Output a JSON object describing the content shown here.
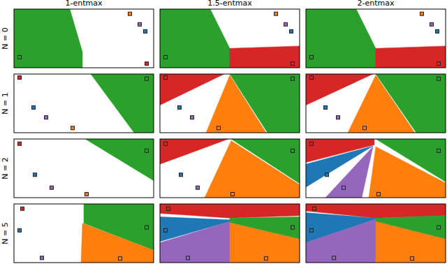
{
  "chart_data": {
    "type": "decision_regions",
    "columns": [
      "1-entmax",
      "1.5-entmax",
      "2-entmax"
    ],
    "xlim": [
      0,
      1
    ],
    "ylim": [
      0,
      1
    ],
    "tick_labels": false,
    "rows": [
      {
        "label": "N = 0",
        "points": {
          "x": [
            0.83,
            0.9,
            0.94,
            0.04,
            0.95
          ],
          "y": [
            0.92,
            0.74,
            0.62,
            0.18,
            0.07
          ],
          "colors": [
            "#ff7f0e",
            "#9467bd",
            "#1f77b4",
            "#2ca02c",
            "#d62728"
          ]
        },
        "panels": [
          {
            "regions": [
              {
                "color": "#2ca02c",
                "points": [
                  [
                    0,
                    1
                  ],
                  [
                    0.4,
                    1
                  ],
                  [
                    0.49,
                    0.27
                  ],
                  [
                    0.49,
                    0
                  ],
                  [
                    0,
                    0
                  ]
                ]
              }
            ]
          },
          {
            "regions": [
              {
                "color": "#2ca02c",
                "points": [
                  [
                    0,
                    1
                  ],
                  [
                    0.36,
                    1
                  ],
                  [
                    0.5,
                    0.33
                  ],
                  [
                    0.5,
                    0
                  ],
                  [
                    0,
                    0
                  ]
                ]
              },
              {
                "color": "#d62728",
                "points": [
                  [
                    0.5,
                    0.33
                  ],
                  [
                    1,
                    0.37
                  ],
                  [
                    1,
                    0
                  ],
                  [
                    0.5,
                    0
                  ]
                ]
              }
            ]
          },
          {
            "regions": [
              {
                "color": "#2ca02c",
                "points": [
                  [
                    0,
                    1
                  ],
                  [
                    0.36,
                    1
                  ],
                  [
                    0.5,
                    0.33
                  ],
                  [
                    0.5,
                    0
                  ],
                  [
                    0,
                    0
                  ]
                ]
              },
              {
                "color": "#d62728",
                "points": [
                  [
                    0.5,
                    0.33
                  ],
                  [
                    1,
                    0.37
                  ],
                  [
                    1,
                    0
                  ],
                  [
                    0.5,
                    0
                  ]
                ]
              }
            ]
          }
        ]
      },
      {
        "label": "N = 1",
        "points": {
          "x": [
            0.04,
            0.14,
            0.23,
            0.42,
            0.95
          ],
          "y": [
            0.94,
            0.43,
            0.26,
            0.08,
            0.92
          ],
          "colors": [
            "#d62728",
            "#1f77b4",
            "#9467bd",
            "#ff7f0e",
            "#2ca02c"
          ]
        },
        "panels": [
          {
            "regions": [
              {
                "color": "#2ca02c",
                "points": [
                  [
                    0.55,
                    1
                  ],
                  [
                    1,
                    1
                  ],
                  [
                    1,
                    0
                  ],
                  [
                    0.86,
                    0
                  ]
                ]
              }
            ]
          },
          {
            "regions": [
              {
                "color": "#d62728",
                "points": [
                  [
                    0,
                    1
                  ],
                  [
                    0.46,
                    1
                  ],
                  [
                    0,
                    0.47
                  ]
                ]
              },
              {
                "color": "#ff7f0e",
                "points": [
                  [
                    0.5,
                    0.98
                  ],
                  [
                    0.33,
                    0
                  ],
                  [
                    0.76,
                    0
                  ]
                ]
              },
              {
                "color": "#2ca02c",
                "points": [
                  [
                    0.5,
                    1
                  ],
                  [
                    1,
                    1
                  ],
                  [
                    1,
                    0
                  ],
                  [
                    0.77,
                    0
                  ]
                ]
              }
            ]
          },
          {
            "regions": [
              {
                "color": "#d62728",
                "points": [
                  [
                    0,
                    1
                  ],
                  [
                    0.48,
                    1
                  ],
                  [
                    0,
                    0.47
                  ]
                ]
              },
              {
                "color": "#ff7f0e",
                "points": [
                  [
                    0.5,
                    0.98
                  ],
                  [
                    0.3,
                    0
                  ],
                  [
                    0.78,
                    0
                  ]
                ]
              },
              {
                "color": "#2ca02c",
                "points": [
                  [
                    0.5,
                    1
                  ],
                  [
                    1,
                    1
                  ],
                  [
                    1,
                    0
                  ],
                  [
                    0.79,
                    0
                  ]
                ]
              }
            ]
          }
        ]
      },
      {
        "label": "N = 2",
        "points": {
          "x": [
            0.04,
            0.15,
            0.27,
            0.52,
            0.95
          ],
          "y": [
            0.92,
            0.39,
            0.17,
            0.06,
            0.8
          ],
          "colors": [
            "#d62728",
            "#1f77b4",
            "#9467bd",
            "#ff7f0e",
            "#2ca02c"
          ]
        },
        "panels": [
          {
            "regions": [
              {
                "color": "#2ca02c",
                "points": [
                  [
                    0.51,
                    1
                  ],
                  [
                    1,
                    1
                  ],
                  [
                    1,
                    0.29
                  ]
                ]
              }
            ]
          },
          {
            "regions": [
              {
                "color": "#d62728",
                "points": [
                  [
                    0,
                    1
                  ],
                  [
                    0.49,
                    1
                  ],
                  [
                    0,
                    0.57
                  ]
                ]
              },
              {
                "color": "#ff7f0e",
                "points": [
                  [
                    0.51,
                    0.97
                  ],
                  [
                    0.32,
                    0
                  ],
                  [
                    1,
                    0
                  ],
                  [
                    1,
                    0.22
                  ]
                ]
              },
              {
                "color": "#2ca02c",
                "points": [
                  [
                    0.51,
                    1
                  ],
                  [
                    1,
                    1
                  ],
                  [
                    1,
                    0.24
                  ]
                ]
              }
            ]
          },
          {
            "regions": [
              {
                "color": "#d62728",
                "points": [
                  [
                    0,
                    1
                  ],
                  [
                    0.49,
                    1
                  ],
                  [
                    0.49,
                    0.9
                  ],
                  [
                    0,
                    0.6
                  ]
                ]
              },
              {
                "color": "#1f77b4",
                "points": [
                  [
                    0,
                    0.57
                  ],
                  [
                    0.48,
                    0.88
                  ],
                  [
                    0,
                    0.18
                  ]
                ]
              },
              {
                "color": "#9467bd",
                "points": [
                  [
                    0.48,
                    0.87
                  ],
                  [
                    0.14,
                    0
                  ],
                  [
                    0.4,
                    0
                  ]
                ]
              },
              {
                "color": "#ff7f0e",
                "points": [
                  [
                    0.5,
                    0.87
                  ],
                  [
                    0.45,
                    0
                  ],
                  [
                    1,
                    0
                  ],
                  [
                    1,
                    0.25
                  ]
                ]
              },
              {
                "color": "#2ca02c",
                "points": [
                  [
                    0.5,
                    1
                  ],
                  [
                    1,
                    1
                  ],
                  [
                    1,
                    0.27
                  ]
                ]
              }
            ]
          }
        ]
      },
      {
        "label": "N = 5",
        "points": {
          "x": [
            0.06,
            0.04,
            0.2,
            0.76,
            0.95
          ],
          "y": [
            0.92,
            0.55,
            0.08,
            0.07,
            0.6
          ],
          "colors": [
            "#d62728",
            "#1f77b4",
            "#9467bd",
            "#ff7f0e",
            "#2ca02c"
          ]
        },
        "panels": [
          {
            "regions": [
              {
                "color": "#2ca02c",
                "points": [
                  [
                    0.5,
                    1
                  ],
                  [
                    1,
                    1
                  ],
                  [
                    1,
                    0.21
                  ],
                  [
                    0.5,
                    0.67
                  ]
                ]
              },
              {
                "color": "#ff7f0e",
                "points": [
                  [
                    0.49,
                    0.67
                  ],
                  [
                    1,
                    0.21
                  ],
                  [
                    1,
                    0
                  ],
                  [
                    0.48,
                    0
                  ]
                ]
              }
            ]
          },
          {
            "regions": [
              {
                "color": "#d62728",
                "points": [
                  [
                    0,
                    1
                  ],
                  [
                    1,
                    1
                  ],
                  [
                    1,
                    0.8
                  ],
                  [
                    0.5,
                    0.76
                  ],
                  [
                    0,
                    0.84
                  ]
                ]
              },
              {
                "color": "#1f77b4",
                "points": [
                  [
                    0,
                    0.78
                  ],
                  [
                    0.5,
                    0.73
                  ],
                  [
                    0.5,
                    0.7
                  ],
                  [
                    0,
                    0.36
                  ]
                ]
              },
              {
                "color": "#9467bd",
                "points": [
                  [
                    0,
                    0.34
                  ],
                  [
                    0.5,
                    0.7
                  ],
                  [
                    0.5,
                    0
                  ],
                  [
                    0,
                    0
                  ]
                ]
              },
              {
                "color": "#2ca02c",
                "points": [
                  [
                    0.5,
                    0.76
                  ],
                  [
                    1,
                    0.78
                  ],
                  [
                    1,
                    0.4
                  ],
                  [
                    0.5,
                    0.68
                  ]
                ]
              },
              {
                "color": "#ff7f0e",
                "points": [
                  [
                    0.5,
                    0.68
                  ],
                  [
                    1,
                    0.4
                  ],
                  [
                    1,
                    0
                  ],
                  [
                    0.5,
                    0
                  ]
                ]
              }
            ]
          },
          {
            "regions": [
              {
                "color": "#d62728",
                "points": [
                  [
                    0,
                    1
                  ],
                  [
                    1,
                    1
                  ],
                  [
                    1,
                    0.8
                  ],
                  [
                    0.5,
                    0.76
                  ],
                  [
                    0,
                    0.88
                  ]
                ]
              },
              {
                "color": "#1f77b4",
                "points": [
                  [
                    0,
                    0.85
                  ],
                  [
                    0.5,
                    0.76
                  ],
                  [
                    0.5,
                    0.74
                  ],
                  [
                    0,
                    0.34
                  ]
                ]
              },
              {
                "color": "#9467bd",
                "points": [
                  [
                    0,
                    0.34
                  ],
                  [
                    0.5,
                    0.74
                  ],
                  [
                    0.5,
                    0
                  ],
                  [
                    0,
                    0
                  ]
                ]
              },
              {
                "color": "#2ca02c",
                "points": [
                  [
                    0.5,
                    0.76
                  ],
                  [
                    1,
                    0.8
                  ],
                  [
                    1,
                    0.4
                  ],
                  [
                    0.5,
                    0.7
                  ]
                ]
              },
              {
                "color": "#ff7f0e",
                "points": [
                  [
                    0.5,
                    0.7
                  ],
                  [
                    1,
                    0.4
                  ],
                  [
                    1,
                    0
                  ],
                  [
                    0.5,
                    0
                  ]
                ]
              }
            ]
          }
        ]
      }
    ]
  }
}
